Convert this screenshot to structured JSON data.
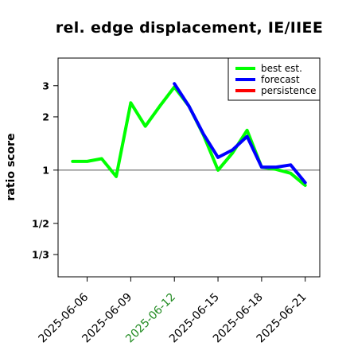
{
  "chart_data": {
    "type": "line",
    "title": "rel. edge displacement, IE/IIEE",
    "xlabel": "",
    "ylabel": "ratio score",
    "y_scale": "log",
    "y_ticks": [
      {
        "value": 3,
        "label": "3"
      },
      {
        "value": 2,
        "label": "2"
      },
      {
        "value": 1,
        "label": "1"
      },
      {
        "value": 0.5,
        "label": "1/2"
      },
      {
        "value": 0.3333,
        "label": "1/3"
      }
    ],
    "ylim": [
      0.2493,
      4.3
    ],
    "xlim": [
      "2025-06-04",
      "2025-06-22"
    ],
    "x_ticks": [
      {
        "date": "2025-06-06",
        "label": "2025-06-06",
        "color": "#000000"
      },
      {
        "date": "2025-06-09",
        "label": "2025-06-09",
        "color": "#000000"
      },
      {
        "date": "2025-06-12",
        "label": "2025-06-12",
        "color": "#228B22"
      },
      {
        "date": "2025-06-15",
        "label": "2025-06-15",
        "color": "#000000"
      },
      {
        "date": "2025-06-18",
        "label": "2025-06-18",
        "color": "#000000"
      },
      {
        "date": "2025-06-21",
        "label": "2025-06-21",
        "color": "#000000"
      }
    ],
    "reference_line": 1,
    "legend_position": "top-right",
    "series": [
      {
        "name": "best est.",
        "color": "#00ff00",
        "points": [
          [
            "2025-06-05",
            1.12
          ],
          [
            "2025-06-06",
            1.12
          ],
          [
            "2025-06-07",
            1.16
          ],
          [
            "2025-06-08",
            0.92
          ],
          [
            "2025-06-09",
            2.4
          ],
          [
            "2025-06-10",
            1.77
          ],
          [
            "2025-06-11",
            2.3
          ],
          [
            "2025-06-12",
            2.95
          ],
          [
            "2025-06-13",
            2.3
          ],
          [
            "2025-06-14",
            1.58
          ],
          [
            "2025-06-15",
            1.0
          ],
          [
            "2025-06-16",
            1.25
          ],
          [
            "2025-06-17",
            1.68
          ],
          [
            "2025-06-18",
            1.04
          ],
          [
            "2025-06-19",
            1.01
          ],
          [
            "2025-06-20",
            0.96
          ],
          [
            "2025-06-21",
            0.82
          ]
        ]
      },
      {
        "name": "forecast",
        "color": "#0000ff",
        "points": [
          [
            "2025-06-12",
            3.08
          ],
          [
            "2025-06-13",
            2.3
          ],
          [
            "2025-06-14",
            1.6
          ],
          [
            "2025-06-15",
            1.18
          ],
          [
            "2025-06-16",
            1.3
          ],
          [
            "2025-06-17",
            1.55
          ],
          [
            "2025-06-18",
            1.04
          ],
          [
            "2025-06-19",
            1.04
          ],
          [
            "2025-06-20",
            1.07
          ],
          [
            "2025-06-21",
            0.85
          ]
        ]
      },
      {
        "name": "persistence",
        "color": "#ff0000",
        "points": []
      }
    ]
  }
}
